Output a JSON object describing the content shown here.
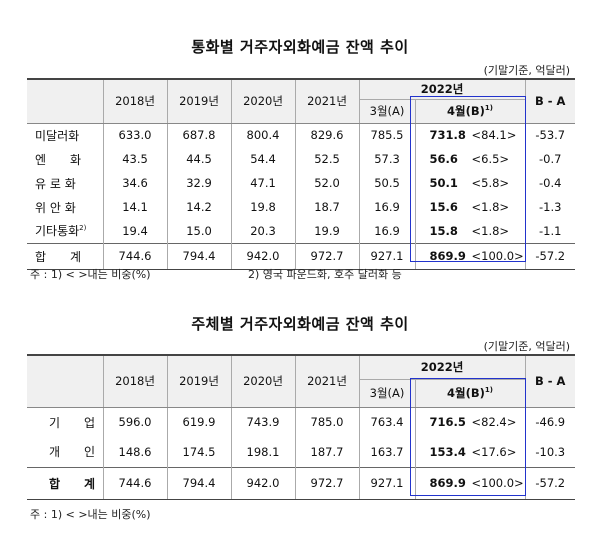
{
  "table1": {
    "title": "통화별 거주자외화예금 잔액 추이",
    "unit": "(기말기준, 억달러)",
    "header_year": "2022년",
    "cols": [
      "2018년",
      "2019년",
      "2020년",
      "2021년"
    ],
    "col_march": "3월(A)",
    "col_april": "4월(B)",
    "col_april_sup": "1)",
    "col_diff": "B - A",
    "rows": [
      {
        "label": "미달러화",
        "v": [
          "633.0",
          "687.8",
          "800.4",
          "829.6",
          "785.5"
        ],
        "april": "731.8",
        "share": "<84.1>",
        "diff": "-53.7"
      },
      {
        "label": "엔　　화",
        "v": [
          "43.5",
          "44.5",
          "54.4",
          "52.5",
          "57.3"
        ],
        "april": "56.6",
        "share": "<6.5>",
        "diff": "-0.7"
      },
      {
        "label": "유 로 화",
        "v": [
          "34.6",
          "32.9",
          "47.1",
          "52.0",
          "50.5"
        ],
        "april": "50.1",
        "share": "<5.8>",
        "diff": "-0.4"
      },
      {
        "label": "위 안 화",
        "v": [
          "14.1",
          "14.2",
          "19.8",
          "18.7",
          "16.9"
        ],
        "april": "15.6",
        "share": "<1.8>",
        "diff": "-1.3"
      },
      {
        "label": "기타통화",
        "sup": "2)",
        "v": [
          "19.4",
          "15.0",
          "20.3",
          "19.9",
          "16.9"
        ],
        "april": "15.8",
        "share": "<1.8>",
        "diff": "-1.1"
      }
    ],
    "total": {
      "label": "합　　계",
      "v": [
        "744.6",
        "794.4",
        "942.0",
        "972.7",
        "927.1"
      ],
      "april": "869.9",
      "share": "<100.0>",
      "diff": "-57.2"
    },
    "note1": "주 : 1)  <  >내는 비중(%)",
    "note2": "2) 영국 파운드화, 호주 달러화 등"
  },
  "table2": {
    "title": "주체별 거주자외화예금 잔액 추이",
    "unit": "(기말기준, 억달러)",
    "header_year": "2022년",
    "cols": [
      "2018년",
      "2019년",
      "2020년",
      "2021년"
    ],
    "col_march": "3월(A)",
    "col_april": "4월(B)",
    "col_april_sup": "1)",
    "col_diff": "B - A",
    "rows": [
      {
        "label": "기　　업",
        "v": [
          "596.0",
          "619.9",
          "743.9",
          "785.0",
          "763.4"
        ],
        "april": "716.5",
        "share": "<82.4>",
        "diff": "-46.9"
      },
      {
        "label": "개　　인",
        "v": [
          "148.6",
          "174.5",
          "198.1",
          "187.7",
          "163.7"
        ],
        "april": "153.4",
        "share": "<17.6>",
        "diff": "-10.3"
      }
    ],
    "total": {
      "label": "합　　계",
      "v": [
        "744.6",
        "794.4",
        "942.0",
        "972.7",
        "927.1"
      ],
      "april": "869.9",
      "share": "<100.0>",
      "diff": "-57.2"
    },
    "note1": "주 : 1)  <  >내는 비중(%)"
  },
  "colors": {
    "highlight_border": "#2233cc",
    "header_bg": "#f0f0f0"
  }
}
